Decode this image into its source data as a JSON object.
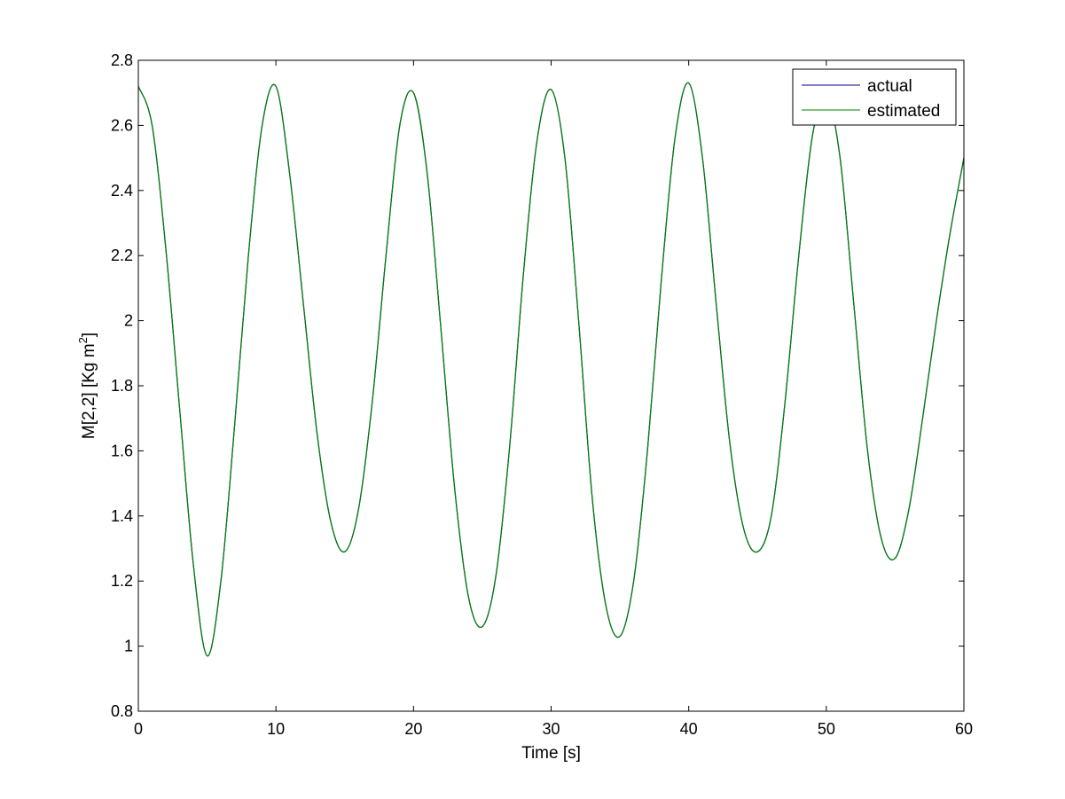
{
  "chart_data": {
    "type": "line",
    "title": "",
    "xlabel": "Time [s]",
    "ylabel_main": "M[2,2] [Kg m",
    "ylabel_sup": "2",
    "ylabel_close": "]",
    "xlim": [
      0,
      60
    ],
    "ylim": [
      0.8,
      2.8
    ],
    "xticks": [
      0,
      10,
      20,
      30,
      40,
      50,
      60
    ],
    "xtick_labels": [
      "0",
      "10",
      "20",
      "30",
      "40",
      "50",
      "60"
    ],
    "yticks": [
      0.8,
      1,
      1.2,
      1.4,
      1.6,
      1.8,
      2,
      2.2,
      2.4,
      2.6,
      2.8
    ],
    "ytick_labels": [
      "0.8",
      "1",
      "1.2",
      "1.4",
      "1.6",
      "1.8",
      "2",
      "2.2",
      "2.4",
      "2.6",
      "2.8"
    ],
    "grid": false,
    "legend_position": "top-right",
    "series": [
      {
        "name": "actual",
        "color": "#000080",
        "x": [
          0,
          1,
          2,
          3,
          4,
          5,
          6,
          7,
          8,
          9,
          10,
          11,
          12,
          13,
          14,
          15,
          16,
          17,
          18,
          19,
          20,
          21,
          22,
          23,
          24,
          25,
          26,
          27,
          28,
          29,
          30,
          31,
          32,
          33,
          34,
          35,
          36,
          37,
          38,
          39,
          40,
          41,
          42,
          43,
          44,
          45,
          46,
          47,
          48,
          49,
          50,
          51,
          52,
          53,
          54,
          55,
          56,
          57,
          58,
          59,
          60
        ],
        "y": [
          2.72,
          2.6,
          2.22,
          1.73,
          1.25,
          0.97,
          1.2,
          1.68,
          2.2,
          2.6,
          2.72,
          2.45,
          2.05,
          1.65,
          1.38,
          1.29,
          1.42,
          1.75,
          2.2,
          2.6,
          2.7,
          2.45,
          1.97,
          1.48,
          1.15,
          1.06,
          1.22,
          1.62,
          2.15,
          2.56,
          2.71,
          2.5,
          2.0,
          1.45,
          1.12,
          1.03,
          1.2,
          1.6,
          2.12,
          2.56,
          2.73,
          2.5,
          2.05,
          1.62,
          1.36,
          1.29,
          1.4,
          1.75,
          2.2,
          2.57,
          2.69,
          2.5,
          2.05,
          1.6,
          1.33,
          1.27,
          1.42,
          1.7,
          2.0,
          2.27,
          2.5
        ]
      },
      {
        "name": "estimated",
        "color": "#008000",
        "x": [
          0,
          1,
          2,
          3,
          4,
          5,
          6,
          7,
          8,
          9,
          10,
          11,
          12,
          13,
          14,
          15,
          16,
          17,
          18,
          19,
          20,
          21,
          22,
          23,
          24,
          25,
          26,
          27,
          28,
          29,
          30,
          31,
          32,
          33,
          34,
          35,
          36,
          37,
          38,
          39,
          40,
          41,
          42,
          43,
          44,
          45,
          46,
          47,
          48,
          49,
          50,
          51,
          52,
          53,
          54,
          55,
          56,
          57,
          58,
          59,
          60
        ],
        "y": [
          2.72,
          2.6,
          2.22,
          1.73,
          1.25,
          0.97,
          1.2,
          1.68,
          2.2,
          2.6,
          2.72,
          2.45,
          2.05,
          1.65,
          1.38,
          1.29,
          1.42,
          1.75,
          2.2,
          2.6,
          2.7,
          2.45,
          1.97,
          1.48,
          1.15,
          1.06,
          1.22,
          1.62,
          2.15,
          2.56,
          2.71,
          2.5,
          2.0,
          1.45,
          1.12,
          1.03,
          1.2,
          1.6,
          2.12,
          2.56,
          2.73,
          2.5,
          2.05,
          1.62,
          1.36,
          1.29,
          1.4,
          1.75,
          2.2,
          2.57,
          2.69,
          2.5,
          2.05,
          1.6,
          1.33,
          1.27,
          1.42,
          1.7,
          2.0,
          2.27,
          2.5
        ]
      }
    ]
  }
}
